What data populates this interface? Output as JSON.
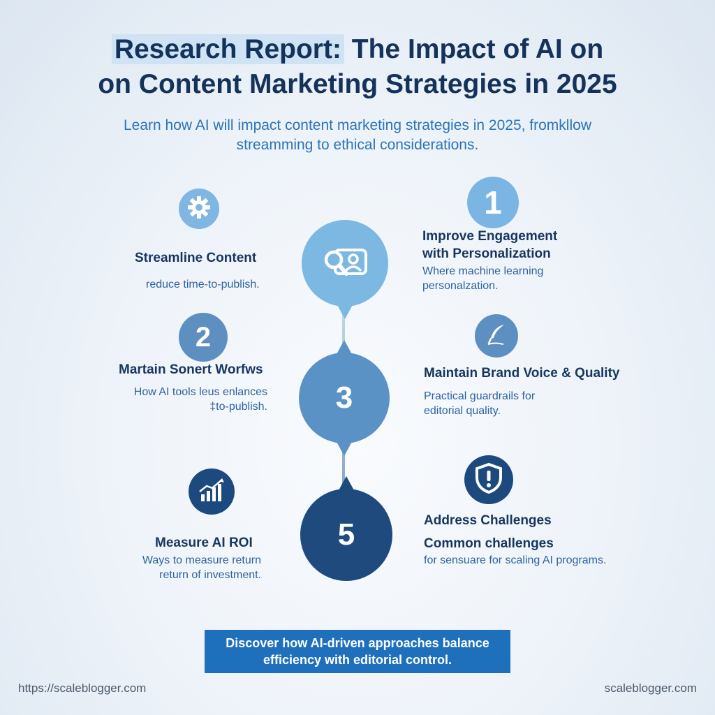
{
  "header": {
    "title_highlight": "Research Report:",
    "title_rest": "The Impact of AI on",
    "title_line2": "on Content Marketing Strategies in 2025",
    "subtitle_line1": "Learn how AI will impact content marketing strategies in 2025, fromkllow",
    "subtitle_line2": "streamming to ethical considerations."
  },
  "icons": {
    "gear": "gear-icon",
    "search_profile": "search-profile-icon",
    "pen": "quill-pen-icon",
    "chart": "bar-chart-growth-icon",
    "shield": "shield-alert-icon"
  },
  "colors": {
    "light_blue": "#7db8e2",
    "mid_blue": "#5b92c5",
    "navy": "#1e4a7e",
    "cta": "#1f70bc"
  },
  "items": {
    "streamline": {
      "heading": "Streamline Content",
      "body": "reduce time-to-publish."
    },
    "engagement": {
      "number": "1",
      "heading_line1": "Improve Engagement",
      "heading_line2": "with Personalization",
      "body_line1": "Where machine learning",
      "body_line2": "personalzation."
    },
    "workflows": {
      "number": "2",
      "heading": "Martain Sonert Worfws",
      "body_line1": "How AI tools leus enlances",
      "body_line2": "‡to-publish."
    },
    "brand": {
      "heading": "Maintain Brand Voice & Quality",
      "body_line1": "Practical guardrails for",
      "body_line2": "editorial quality."
    },
    "center_mid_number": "3",
    "center_bot_number": "5",
    "roi": {
      "heading": "Measure AI ROI",
      "body_line1": "Ways to measure return",
      "body_line2": "return of investment."
    },
    "challenges": {
      "heading": "Address Challenges",
      "subheading": "Common challenges",
      "body": "for sensuare for scaling AI programs."
    }
  },
  "cta": {
    "line1": "Discover how AI-driven approaches balance",
    "line2": "efficiency with editorial control."
  },
  "footer": {
    "left": "https://scaleblogger.com",
    "right": "scaleblogger.com"
  }
}
